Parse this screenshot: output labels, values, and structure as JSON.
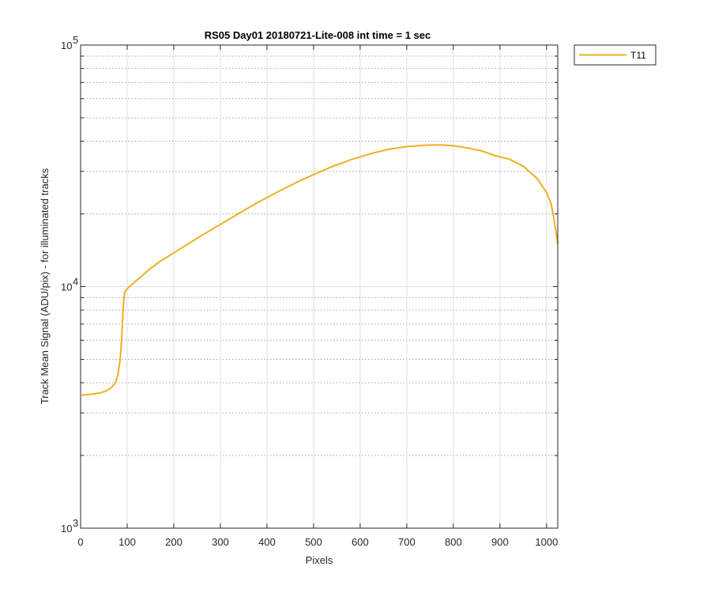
{
  "chart_data": {
    "type": "line",
    "title": "RS05 Day01 20180721-Lite-008 int time = 1 sec",
    "xlabel": "Pixels",
    "ylabel": "Track Mean Signal (ADU/pix) - for illuminated tracks",
    "xlim": [
      0,
      1024
    ],
    "ylim": [
      1000,
      100000
    ],
    "yscale": "log",
    "grid": true,
    "minor_grid": true,
    "legend_placement": "outside-top-right",
    "x_ticks": [
      0,
      100,
      200,
      300,
      400,
      500,
      600,
      700,
      800,
      900,
      1000
    ],
    "x_tick_labels": [
      "0",
      "100",
      "200",
      "300",
      "400",
      "500",
      "600",
      "700",
      "800",
      "900",
      "1000"
    ],
    "y_ticks": [
      1000,
      10000,
      100000
    ],
    "y_tick_labels": [
      {
        "base": "10",
        "exp": "3"
      },
      {
        "base": "10",
        "exp": "4"
      },
      {
        "base": "10",
        "exp": "5"
      }
    ],
    "series": [
      {
        "name": "T11",
        "color": "#EDB120",
        "x": [
          2,
          20,
          40,
          55,
          65,
          75,
          80,
          85,
          88,
          90,
          92,
          94,
          96,
          100,
          110,
          120,
          130,
          150,
          170,
          200,
          230,
          260,
          300,
          340,
          380,
          420,
          460,
          500,
          540,
          580,
          620,
          660,
          700,
          740,
          770,
          800,
          830,
          860,
          890,
          920,
          950,
          980,
          1000,
          1010,
          1015,
          1020,
          1024
        ],
        "y": [
          3550,
          3580,
          3620,
          3700,
          3800,
          4000,
          4300,
          5000,
          6000,
          7300,
          8500,
          9300,
          9600,
          9800,
          10200,
          10600,
          11000,
          11900,
          12700,
          13800,
          15000,
          16300,
          18100,
          20100,
          22300,
          24500,
          26800,
          29100,
          31400,
          33500,
          35400,
          37000,
          38000,
          38500,
          38600,
          38300,
          37500,
          36500,
          34800,
          33700,
          31500,
          28000,
          24500,
          22000,
          19500,
          17000,
          15000
        ]
      }
    ]
  }
}
